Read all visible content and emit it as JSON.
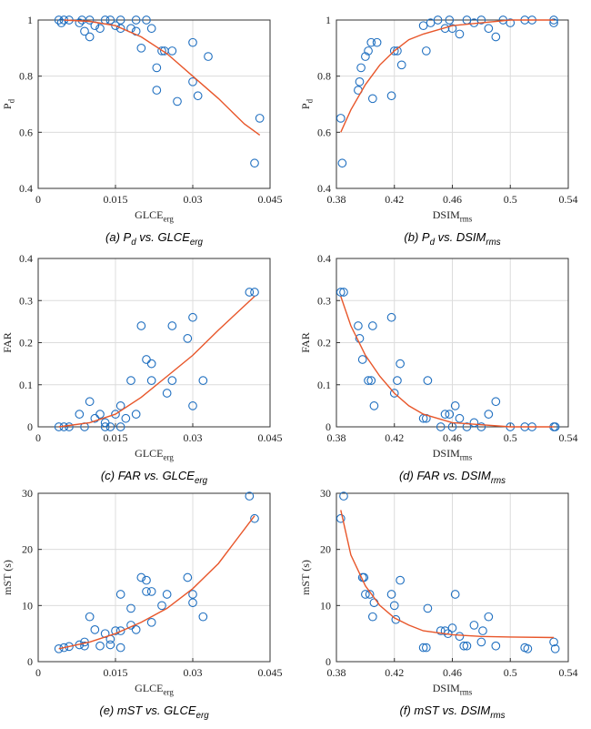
{
  "chart_data": [
    {
      "type": "scatter",
      "caption": [
        "(a) P",
        "d",
        " vs. GLCE",
        "erg"
      ],
      "xlabel": [
        "GLCE",
        "erg"
      ],
      "ylabel": [
        "P",
        "d"
      ],
      "xlim": [
        0,
        0.045
      ],
      "xticks": [
        0,
        0.015,
        0.03,
        0.045
      ],
      "ylim": [
        0.4,
        1
      ],
      "yticks": [
        0.4,
        0.6,
        0.8,
        1
      ],
      "grid": true,
      "series": [
        {
          "type": "scatter",
          "color": "#1f6fc0",
          "x": [
            0.004,
            0.0045,
            0.005,
            0.006,
            0.008,
            0.0085,
            0.009,
            0.01,
            0.01,
            0.011,
            0.012,
            0.013,
            0.014,
            0.015,
            0.016,
            0.016,
            0.018,
            0.019,
            0.019,
            0.021,
            0.02,
            0.022,
            0.023,
            0.024,
            0.0245,
            0.023,
            0.026,
            0.027,
            0.03,
            0.03,
            0.031,
            0.033,
            0.042,
            0.043
          ],
          "values": [
            1,
            0.99,
            1,
            1,
            0.99,
            1,
            0.96,
            0.94,
            1,
            0.98,
            0.97,
            1,
            1,
            0.98,
            1,
            0.97,
            0.97,
            0.96,
            1,
            1,
            0.9,
            0.97,
            0.83,
            0.89,
            0.89,
            0.75,
            0.89,
            0.71,
            0.92,
            0.78,
            0.73,
            0.87,
            0.49,
            0.65
          ]
        },
        {
          "type": "line",
          "color": "#e8562a",
          "x": [
            0.005,
            0.01,
            0.015,
            0.02,
            0.025,
            0.03,
            0.035,
            0.04,
            0.043
          ],
          "values": [
            1,
            0.995,
            0.98,
            0.94,
            0.88,
            0.8,
            0.72,
            0.63,
            0.59
          ]
        }
      ]
    },
    {
      "type": "scatter",
      "caption": [
        "(b) P",
        "d",
        " vs. DSIM",
        "rms"
      ],
      "xlabel": [
        "DSIM",
        "rms"
      ],
      "ylabel": [
        "P",
        "d"
      ],
      "xlim": [
        0.38,
        0.54
      ],
      "xticks": [
        0.38,
        0.42,
        0.46,
        0.5,
        0.54
      ],
      "ylim": [
        0.4,
        1
      ],
      "yticks": [
        0.4,
        0.6,
        0.8,
        1
      ],
      "grid": true,
      "series": [
        {
          "type": "scatter",
          "color": "#1f6fc0",
          "x": [
            0.383,
            0.384,
            0.395,
            0.396,
            0.397,
            0.4,
            0.402,
            0.404,
            0.405,
            0.408,
            0.418,
            0.42,
            0.422,
            0.425,
            0.44,
            0.442,
            0.445,
            0.45,
            0.455,
            0.458,
            0.46,
            0.465,
            0.47,
            0.475,
            0.48,
            0.485,
            0.49,
            0.495,
            0.5,
            0.51,
            0.515,
            0.53,
            0.53
          ],
          "values": [
            0.65,
            0.49,
            0.75,
            0.78,
            0.83,
            0.87,
            0.89,
            0.92,
            0.72,
            0.92,
            0.73,
            0.89,
            0.89,
            0.84,
            0.98,
            0.89,
            0.99,
            1,
            0.97,
            1,
            0.97,
            0.95,
            1,
            0.99,
            1,
            0.97,
            0.94,
            1,
            0.99,
            1,
            1,
            1,
            0.99
          ]
        },
        {
          "type": "line",
          "color": "#e8562a",
          "x": [
            0.383,
            0.39,
            0.4,
            0.41,
            0.42,
            0.43,
            0.44,
            0.46,
            0.48,
            0.5,
            0.53
          ],
          "values": [
            0.6,
            0.68,
            0.77,
            0.84,
            0.89,
            0.93,
            0.95,
            0.98,
            0.99,
            1,
            1
          ]
        }
      ]
    },
    {
      "type": "scatter",
      "caption": [
        "(c) FAR vs. GLCE",
        "erg"
      ],
      "xlabel": [
        "GLCE",
        "erg"
      ],
      "ylabel": [
        "FAR"
      ],
      "xlim": [
        0,
        0.045
      ],
      "xticks": [
        0,
        0.015,
        0.03,
        0.045
      ],
      "ylim": [
        0,
        0.4
      ],
      "yticks": [
        0,
        0.1,
        0.2,
        0.3,
        0.4
      ],
      "grid": true,
      "series": [
        {
          "type": "scatter",
          "color": "#1f6fc0",
          "x": [
            0.004,
            0.005,
            0.006,
            0.008,
            0.009,
            0.01,
            0.011,
            0.012,
            0.013,
            0.013,
            0.014,
            0.015,
            0.016,
            0.016,
            0.017,
            0.018,
            0.019,
            0.02,
            0.021,
            0.022,
            0.022,
            0.025,
            0.026,
            0.026,
            0.029,
            0.03,
            0.03,
            0.032,
            0.041,
            0.042
          ],
          "values": [
            0,
            0,
            0,
            0.03,
            0,
            0.06,
            0.02,
            0.03,
            0,
            0.01,
            0,
            0.03,
            0.05,
            0,
            0.02,
            0.11,
            0.03,
            0.24,
            0.16,
            0.11,
            0.15,
            0.08,
            0.24,
            0.11,
            0.21,
            0.05,
            0.26,
            0.11,
            0.32,
            0.32
          ]
        },
        {
          "type": "line",
          "color": "#e8562a",
          "x": [
            0.004,
            0.01,
            0.015,
            0.02,
            0.025,
            0.03,
            0.035,
            0.042
          ],
          "values": [
            0,
            0.01,
            0.03,
            0.07,
            0.12,
            0.17,
            0.23,
            0.31
          ]
        }
      ]
    },
    {
      "type": "scatter",
      "caption": [
        "(d) FAR vs. DSIM",
        "rms"
      ],
      "xlabel": [
        "DSIM",
        "rms"
      ],
      "ylabel": [
        "FAR"
      ],
      "xlim": [
        0.38,
        0.54
      ],
      "xticks": [
        0.38,
        0.42,
        0.46,
        0.5,
        0.54
      ],
      "ylim": [
        0,
        0.4
      ],
      "yticks": [
        0,
        0.1,
        0.2,
        0.3,
        0.4
      ],
      "grid": true,
      "series": [
        {
          "type": "scatter",
          "color": "#1f6fc0",
          "x": [
            0.383,
            0.385,
            0.395,
            0.396,
            0.398,
            0.402,
            0.404,
            0.405,
            0.406,
            0.418,
            0.42,
            0.422,
            0.424,
            0.44,
            0.442,
            0.443,
            0.452,
            0.455,
            0.458,
            0.46,
            0.462,
            0.465,
            0.47,
            0.475,
            0.48,
            0.485,
            0.49,
            0.5,
            0.51,
            0.515,
            0.53,
            0.531
          ],
          "values": [
            0.32,
            0.32,
            0.24,
            0.21,
            0.16,
            0.11,
            0.11,
            0.24,
            0.05,
            0.26,
            0.08,
            0.11,
            0.15,
            0.02,
            0.02,
            0.11,
            0,
            0.03,
            0.03,
            0,
            0.05,
            0.02,
            0,
            0.01,
            0,
            0.03,
            0.06,
            0,
            0,
            0,
            0,
            0
          ]
        },
        {
          "type": "line",
          "color": "#e8562a",
          "x": [
            0.383,
            0.39,
            0.4,
            0.41,
            0.42,
            0.43,
            0.44,
            0.46,
            0.48,
            0.5,
            0.53
          ],
          "values": [
            0.31,
            0.24,
            0.17,
            0.12,
            0.08,
            0.05,
            0.03,
            0.01,
            0.005,
            0,
            0
          ]
        }
      ]
    },
    {
      "type": "scatter",
      "caption": [
        "(e) mST vs. GLCE",
        "erg"
      ],
      "xlabel": [
        "GLCE",
        "erg"
      ],
      "ylabel": [
        "mST (s)"
      ],
      "xlim": [
        0,
        0.045
      ],
      "xticks": [
        0,
        0.015,
        0.03,
        0.045
      ],
      "ylim": [
        0,
        30
      ],
      "yticks": [
        0,
        10,
        20,
        30
      ],
      "grid": true,
      "series": [
        {
          "type": "scatter",
          "color": "#1f6fc0",
          "x": [
            0.004,
            0.005,
            0.006,
            0.008,
            0.009,
            0.009,
            0.01,
            0.011,
            0.012,
            0.013,
            0.014,
            0.014,
            0.015,
            0.016,
            0.016,
            0.016,
            0.018,
            0.018,
            0.019,
            0.02,
            0.021,
            0.021,
            0.022,
            0.022,
            0.024,
            0.025,
            0.029,
            0.03,
            0.03,
            0.032,
            0.041,
            0.042
          ],
          "values": [
            2.3,
            2.5,
            2.7,
            3,
            3.5,
            2.8,
            8,
            5.7,
            2.8,
            5,
            4,
            3,
            5.5,
            5.5,
            12,
            2.5,
            6.5,
            9.5,
            5.7,
            15,
            12.5,
            14.5,
            7,
            12.5,
            10,
            12,
            15,
            10.5,
            12,
            8,
            29.5,
            25.5
          ]
        },
        {
          "type": "line",
          "color": "#e8562a",
          "x": [
            0.004,
            0.01,
            0.015,
            0.02,
            0.025,
            0.03,
            0.035,
            0.042
          ],
          "values": [
            2.3,
            3.5,
            5,
            7,
            9.5,
            13,
            17.5,
            26
          ]
        }
      ]
    },
    {
      "type": "scatter",
      "caption": [
        "(f) mST vs. DSIM",
        "rms"
      ],
      "xlabel": [
        "DSIM",
        "rms"
      ],
      "ylabel": [
        "mST (s)"
      ],
      "xlim": [
        0.38,
        0.54
      ],
      "xticks": [
        0.38,
        0.42,
        0.46,
        0.5,
        0.54
      ],
      "ylim": [
        0,
        30
      ],
      "yticks": [
        0,
        10,
        20,
        30
      ],
      "grid": true,
      "series": [
        {
          "type": "scatter",
          "color": "#1f6fc0",
          "x": [
            0.383,
            0.385,
            0.398,
            0.399,
            0.4,
            0.403,
            0.405,
            0.406,
            0.418,
            0.42,
            0.421,
            0.424,
            0.44,
            0.442,
            0.443,
            0.452,
            0.455,
            0.457,
            0.46,
            0.462,
            0.465,
            0.468,
            0.47,
            0.475,
            0.48,
            0.481,
            0.485,
            0.49,
            0.51,
            0.512,
            0.53,
            0.531
          ],
          "values": [
            25.5,
            29.5,
            15,
            15,
            12,
            12,
            8,
            10.5,
            12,
            10,
            7.5,
            14.5,
            2.5,
            2.5,
            9.5,
            5.5,
            5.5,
            5,
            6,
            12,
            4.5,
            2.8,
            2.8,
            6.5,
            3.5,
            5.5,
            8,
            2.8,
            2.5,
            2.3,
            3.5,
            2.3
          ]
        },
        {
          "type": "line",
          "color": "#e8562a",
          "x": [
            0.383,
            0.39,
            0.4,
            0.41,
            0.42,
            0.43,
            0.44,
            0.46,
            0.48,
            0.5,
            0.53
          ],
          "values": [
            27,
            19,
            13.5,
            10,
            7.8,
            6.5,
            5.5,
            4.8,
            4.5,
            4.4,
            4.3
          ]
        }
      ]
    }
  ]
}
